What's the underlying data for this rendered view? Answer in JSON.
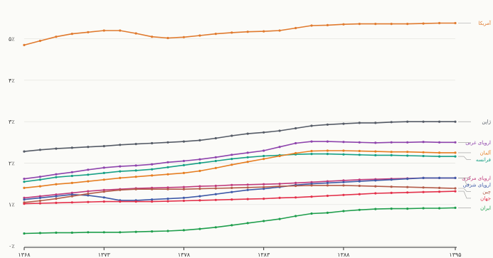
{
  "chart_data": {
    "type": "line",
    "title": "",
    "xlabel": "",
    "ylabel": "",
    "x": [
      1368,
      1369,
      1370,
      1371,
      1372,
      1373,
      1374,
      1375,
      1376,
      1377,
      1378,
      1379,
      1380,
      1381,
      1382,
      1383,
      1384,
      1385,
      1386,
      1387,
      1388,
      1389,
      1390,
      1391,
      1392,
      1393,
      1394,
      1395
    ],
    "x_ticks": [
      {
        "value": 1368,
        "label": "۱۳۶۸"
      },
      {
        "value": 1373,
        "label": "۱۳۷۳"
      },
      {
        "value": 1378,
        "label": "۱۳۷۸"
      },
      {
        "value": 1383,
        "label": "۱۳۸۳"
      },
      {
        "value": 1388,
        "label": "۱۳۸۸"
      },
      {
        "value": 1395,
        "label": "۱۳۹۵"
      }
    ],
    "y_ticks": [
      {
        "value": 0,
        "label": "۰٪"
      },
      {
        "value": 1,
        "label": "۱٪"
      },
      {
        "value": 2,
        "label": "۲٪"
      },
      {
        "value": 3,
        "label": "۳٪"
      },
      {
        "value": 4,
        "label": "۴٪"
      },
      {
        "value": 5,
        "label": "۵٪"
      }
    ],
    "ylim": [
      0,
      5.8
    ],
    "grid": true,
    "series": [
      {
        "name": "آمریکا",
        "color": "#e07a2e",
        "values": [
          4.85,
          4.95,
          5.05,
          5.12,
          5.16,
          5.2,
          5.2,
          5.13,
          5.05,
          5.02,
          5.04,
          5.08,
          5.12,
          5.15,
          5.17,
          5.18,
          5.2,
          5.26,
          5.32,
          5.33,
          5.35,
          5.36,
          5.36,
          5.36,
          5.36,
          5.37,
          5.38,
          5.38
        ]
      },
      {
        "name": "ژاپن",
        "color": "#555b66",
        "values": [
          2.28,
          2.32,
          2.35,
          2.37,
          2.39,
          2.41,
          2.44,
          2.46,
          2.48,
          2.5,
          2.52,
          2.55,
          2.6,
          2.66,
          2.71,
          2.74,
          2.78,
          2.84,
          2.9,
          2.93,
          2.95,
          2.97,
          2.97,
          2.99,
          3.0,
          3.0,
          3.0,
          3.0
        ]
      },
      {
        "name": "اروپای غربی",
        "color": "#8e44ad",
        "values": [
          1.62,
          1.67,
          1.73,
          1.78,
          1.84,
          1.89,
          1.92,
          1.94,
          1.97,
          2.02,
          2.05,
          2.09,
          2.14,
          2.2,
          2.25,
          2.3,
          2.39,
          2.48,
          2.52,
          2.52,
          2.51,
          2.5,
          2.49,
          2.5,
          2.5,
          2.51,
          2.5,
          2.5
        ]
      },
      {
        "name": "فرانسه",
        "color": "#16a085",
        "values": [
          1.55,
          1.6,
          1.66,
          1.69,
          1.72,
          1.76,
          1.8,
          1.82,
          1.85,
          1.9,
          1.95,
          2.0,
          2.05,
          2.1,
          2.14,
          2.17,
          2.19,
          2.21,
          2.22,
          2.22,
          2.21,
          2.2,
          2.19,
          2.19,
          2.18,
          2.17,
          2.16,
          2.16
        ]
      },
      {
        "name": "آلمان",
        "color": "#e67e22",
        "values": [
          1.4,
          1.44,
          1.49,
          1.52,
          1.56,
          1.6,
          1.64,
          1.67,
          1.7,
          1.73,
          1.76,
          1.81,
          1.88,
          1.96,
          2.03,
          2.1,
          2.17,
          2.24,
          2.29,
          2.3,
          2.3,
          2.29,
          2.28,
          2.27,
          2.27,
          2.26,
          2.25,
          2.25
        ]
      },
      {
        "name": "اروپای مرکزی",
        "color": "#c0397b",
        "values": [
          1.16,
          1.2,
          1.24,
          1.28,
          1.32,
          1.35,
          1.37,
          1.39,
          1.4,
          1.41,
          1.42,
          1.44,
          1.45,
          1.47,
          1.48,
          1.49,
          1.5,
          1.52,
          1.54,
          1.56,
          1.58,
          1.6,
          1.61,
          1.62,
          1.63,
          1.64,
          1.64,
          1.64
        ]
      },
      {
        "name": "اروپای شرقی",
        "color": "#3f5aa8",
        "values": [
          1.12,
          1.16,
          1.2,
          1.24,
          1.22,
          1.17,
          1.1,
          1.1,
          1.12,
          1.14,
          1.16,
          1.2,
          1.25,
          1.3,
          1.35,
          1.38,
          1.42,
          1.47,
          1.5,
          1.52,
          1.54,
          1.56,
          1.58,
          1.6,
          1.62,
          1.64,
          1.64,
          1.64
        ]
      },
      {
        "name": "چین",
        "color": "#b35b49",
        "values": [
          1.05,
          1.09,
          1.14,
          1.2,
          1.26,
          1.31,
          1.35,
          1.37,
          1.37,
          1.37,
          1.37,
          1.38,
          1.39,
          1.4,
          1.41,
          1.42,
          1.44,
          1.45,
          1.46,
          1.46,
          1.46,
          1.45,
          1.44,
          1.43,
          1.42,
          1.41,
          1.4,
          1.39
        ]
      },
      {
        "name": "جهان",
        "color": "#e3304a",
        "values": [
          1.02,
          1.03,
          1.04,
          1.05,
          1.06,
          1.07,
          1.07,
          1.07,
          1.07,
          1.08,
          1.09,
          1.1,
          1.11,
          1.12,
          1.13,
          1.14,
          1.16,
          1.17,
          1.19,
          1.21,
          1.23,
          1.25,
          1.27,
          1.28,
          1.29,
          1.3,
          1.31,
          1.32
        ]
      },
      {
        "name": "ایران",
        "color": "#1e9e4c",
        "values": [
          0.3,
          0.31,
          0.32,
          0.32,
          0.33,
          0.33,
          0.33,
          0.34,
          0.35,
          0.36,
          0.38,
          0.41,
          0.45,
          0.5,
          0.55,
          0.6,
          0.65,
          0.72,
          0.78,
          0.8,
          0.84,
          0.87,
          0.89,
          0.9,
          0.9,
          0.91,
          0.91,
          0.92
        ]
      }
    ]
  }
}
